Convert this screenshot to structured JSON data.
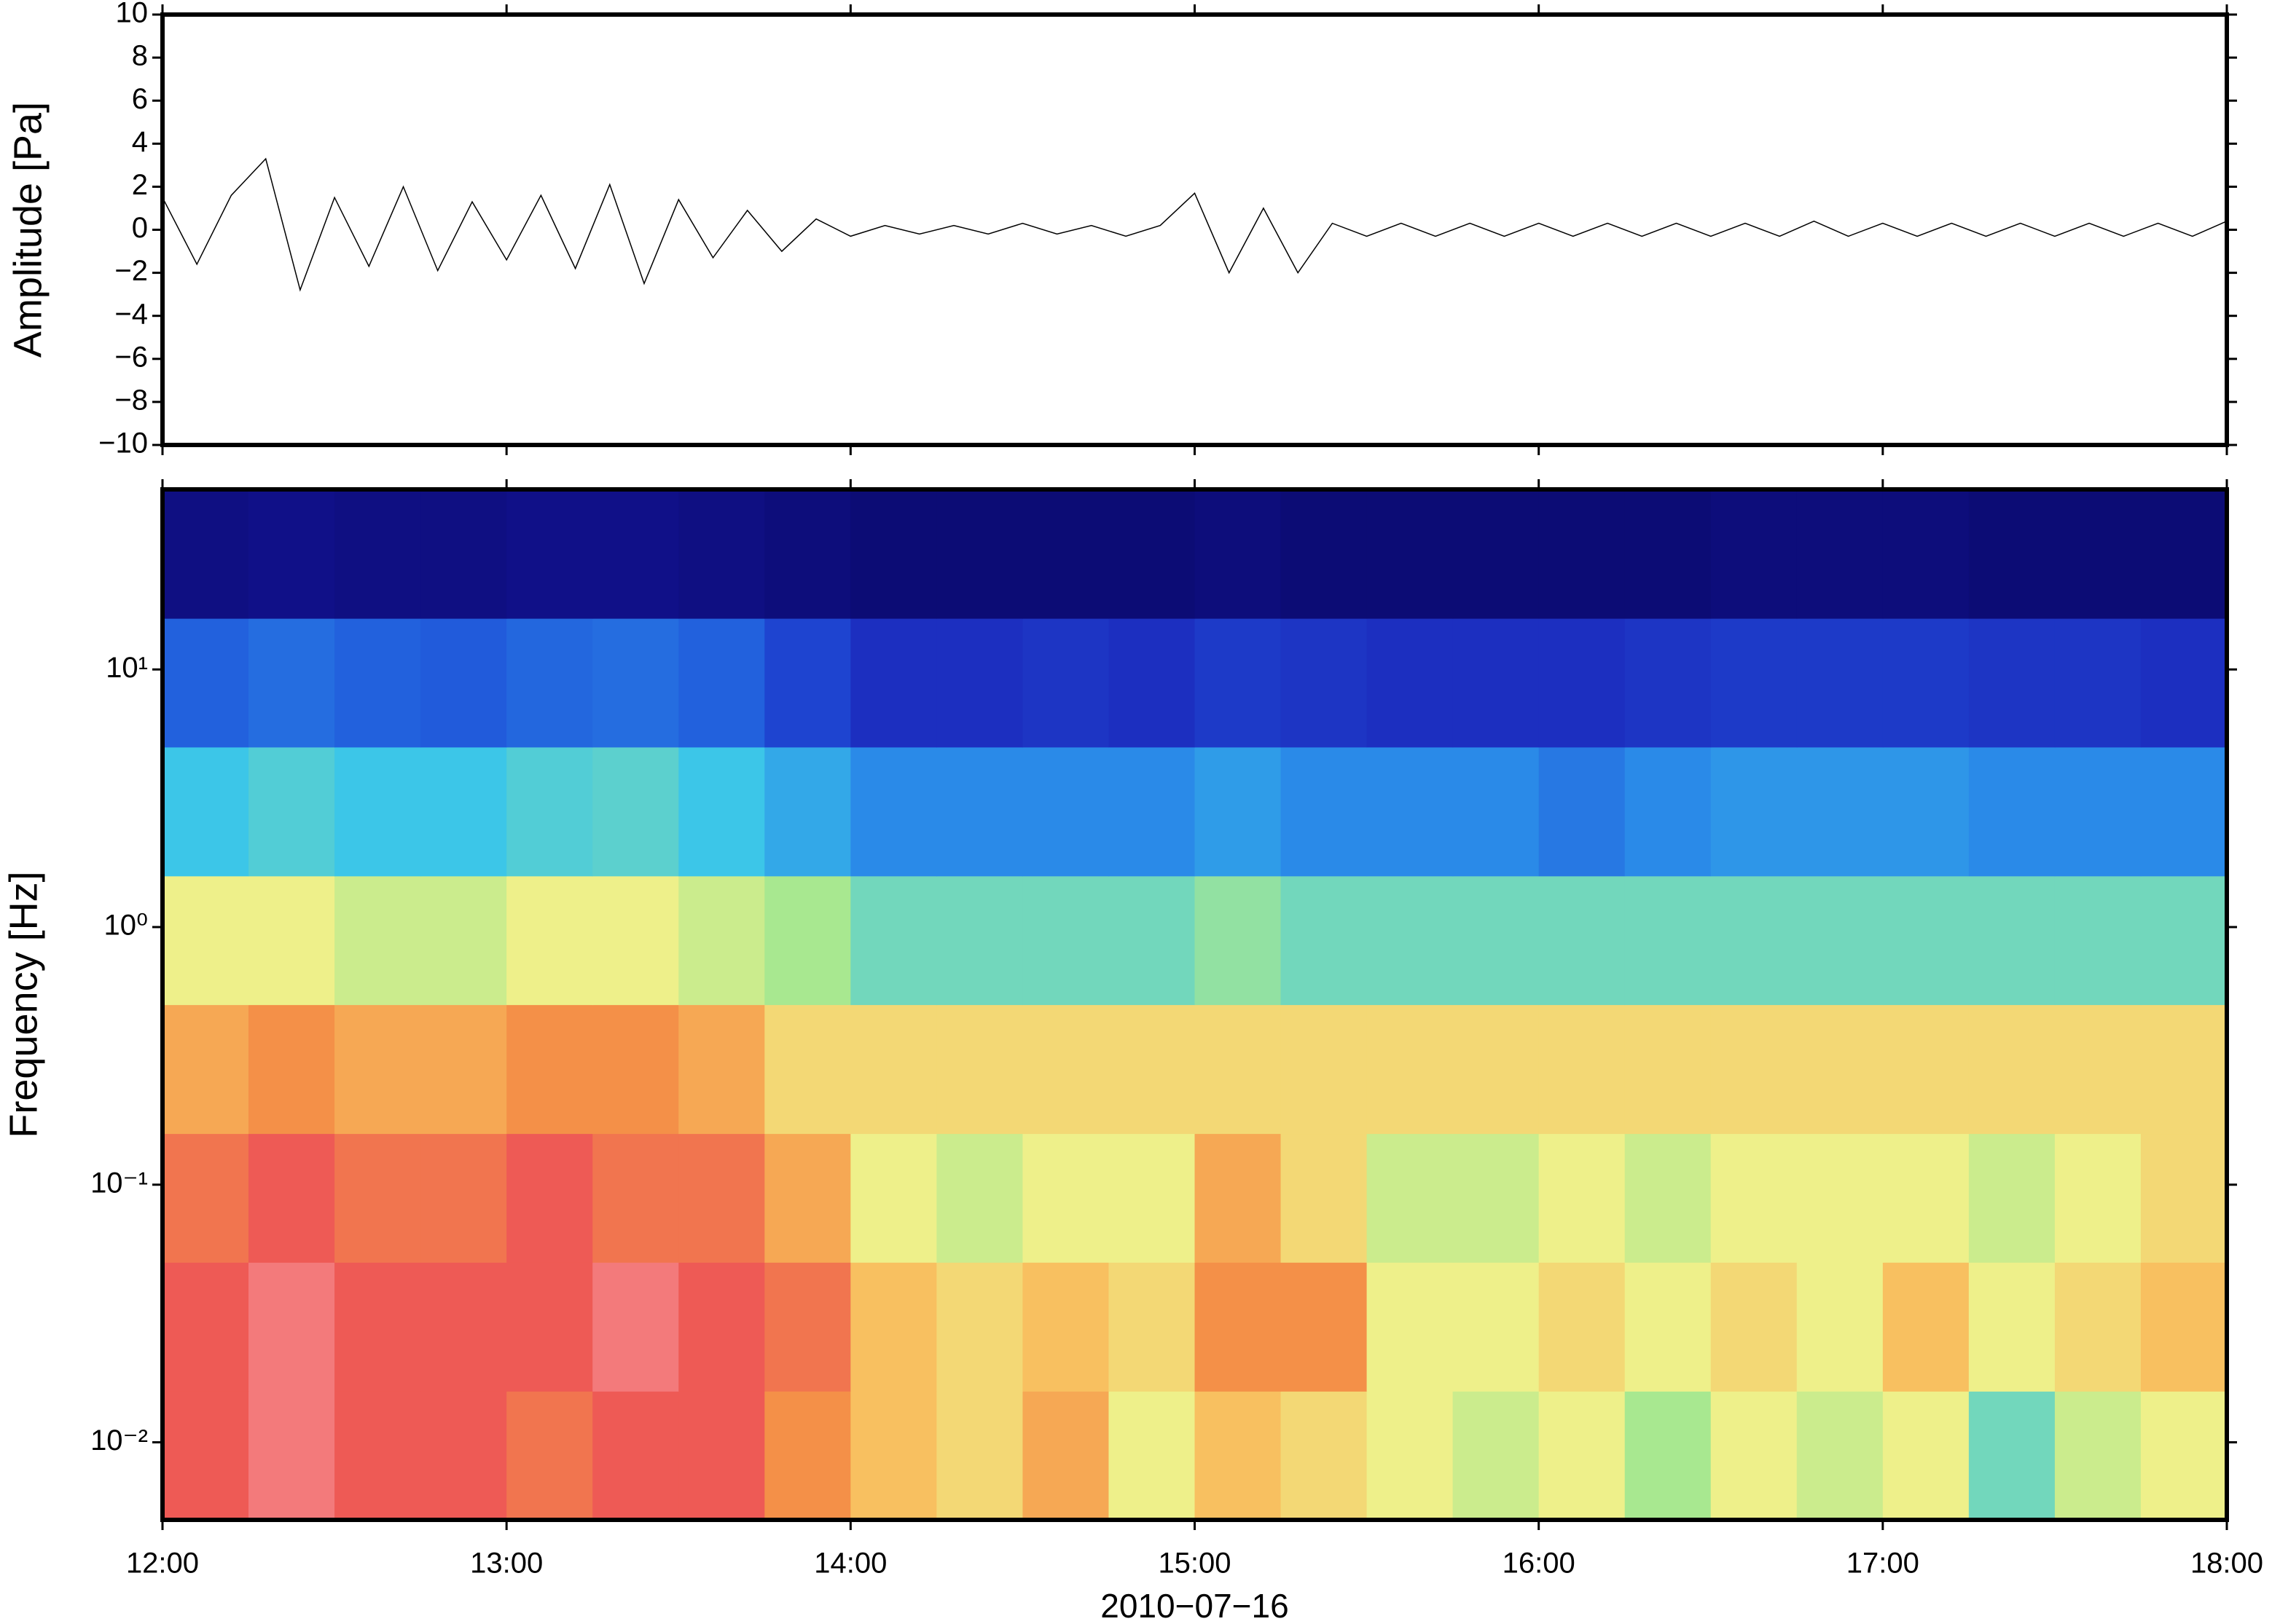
{
  "chart_data": [
    {
      "type": "line",
      "ylabel": "Amplitude [Pa]",
      "color": "#000000",
      "xlim": [
        12,
        18
      ],
      "ylim": [
        -10,
        10
      ],
      "yticks": [
        {
          "value": -10,
          "label": "−10"
        },
        {
          "value": -8,
          "label": "−8"
        },
        {
          "value": -6,
          "label": "−6"
        },
        {
          "value": -4,
          "label": "−4"
        },
        {
          "value": -2,
          "label": "−2"
        },
        0,
        2,
        4,
        6,
        8,
        10
      ],
      "x": [
        12.0,
        12.1,
        12.2,
        12.3,
        12.4,
        12.5,
        12.6,
        12.7,
        12.8,
        12.9,
        13.0,
        13.1,
        13.2,
        13.3,
        13.4,
        13.5,
        13.6,
        13.7,
        13.8,
        13.9,
        14.0,
        14.1,
        14.2,
        14.3,
        14.4,
        14.5,
        14.6,
        14.7,
        14.8,
        14.9,
        15.0,
        15.1,
        15.2,
        15.3,
        15.4,
        15.5,
        15.6,
        15.7,
        15.8,
        15.9,
        16.0,
        16.1,
        16.2,
        16.3,
        16.4,
        16.5,
        16.6,
        16.7,
        16.8,
        16.9,
        17.0,
        17.1,
        17.2,
        17.3,
        17.4,
        17.5,
        17.6,
        17.7,
        17.8,
        17.9,
        18.0
      ],
      "values": [
        1.5,
        -1.6,
        1.6,
        3.3,
        -2.8,
        1.5,
        -1.7,
        2.0,
        -1.9,
        1.3,
        -1.4,
        1.6,
        -1.8,
        2.1,
        -2.5,
        1.4,
        -1.3,
        0.9,
        -1.0,
        0.5,
        -0.3,
        0.2,
        -0.2,
        0.2,
        -0.2,
        0.3,
        -0.2,
        0.2,
        -0.3,
        0.2,
        1.7,
        -2.0,
        1.0,
        -2.0,
        0.3,
        -0.3,
        0.3,
        -0.3,
        0.3,
        -0.3,
        0.3,
        -0.3,
        0.3,
        -0.3,
        0.3,
        -0.3,
        0.3,
        -0.3,
        0.4,
        -0.3,
        0.3,
        -0.3,
        0.3,
        -0.3,
        0.3,
        -0.3,
        0.3,
        -0.3,
        0.3,
        -0.3,
        0.4
      ]
    },
    {
      "type": "heatmap",
      "ylabel": "Frequency [Hz]",
      "xlabel": "2010−07−16",
      "log_y": true,
      "xlim": [
        12,
        18
      ],
      "ylim": [
        0.005,
        50
      ],
      "xticks": [
        {
          "value": 12,
          "label": "12:00"
        },
        {
          "value": 13,
          "label": "13:00"
        },
        {
          "value": 14,
          "label": "14:00"
        },
        {
          "value": 15,
          "label": "15:00"
        },
        {
          "value": 16,
          "label": "16:00"
        },
        {
          "value": 17,
          "label": "17:00"
        },
        {
          "value": 18,
          "label": "18:00"
        }
      ],
      "yticks": [
        {
          "value": 0.01,
          "label": "10⁻²"
        },
        {
          "value": 0.1,
          "label": "10⁻¹"
        },
        {
          "value": 1,
          "label": "10⁰"
        },
        {
          "value": 10,
          "label": "10¹"
        }
      ],
      "x_edges": [
        12,
        12.25,
        12.5,
        12.75,
        13,
        13.25,
        13.5,
        13.75,
        14,
        14.25,
        14.5,
        14.75,
        15,
        15.25,
        15.5,
        15.75,
        16,
        16.25,
        16.5,
        16.75,
        17,
        17.25,
        17.5,
        17.75,
        18
      ],
      "y_edges": [
        0.005,
        0.0158,
        0.05,
        0.158,
        0.5,
        1.58,
        5,
        15.8,
        50
      ],
      "zlim": [
        0,
        10
      ],
      "colormap": [
        "#0a0a6e",
        "#1a1ab0",
        "#1f4fd8",
        "#2a8ae8",
        "#3cc6e8",
        "#a8e890",
        "#eef08a",
        "#f8c060",
        "#f49048",
        "#ee5a55",
        "#f79aa0"
      ],
      "z": [
        [
          9,
          9.5,
          9,
          9,
          8.5,
          9,
          9,
          8,
          7,
          6.5,
          7.5,
          6,
          7,
          6.5,
          6,
          5.5,
          6,
          5,
          6,
          5.5,
          6,
          4.5,
          5.5,
          6
        ],
        [
          9,
          9.5,
          9,
          9,
          9,
          9.5,
          9,
          8.5,
          7,
          6.5,
          7,
          6.5,
          8,
          8,
          6,
          6,
          6.5,
          6,
          6.5,
          6,
          7,
          6,
          6.5,
          7
        ],
        [
          8.5,
          9,
          8.5,
          8.5,
          9,
          8.5,
          8.5,
          7.5,
          6,
          5.5,
          6,
          6,
          7.5,
          6.5,
          5.5,
          5.5,
          6,
          5.5,
          6,
          6,
          6,
          5.5,
          6,
          6.5
        ],
        [
          7.5,
          8,
          7.5,
          7.5,
          8,
          8,
          7.5,
          6.5,
          6.5,
          6.5,
          6.5,
          6.5,
          6.5,
          6.5,
          6.5,
          6.5,
          6.5,
          6.5,
          6.5,
          6.5,
          6.5,
          6.5,
          6.5,
          6.5
        ],
        [
          6,
          6,
          5.5,
          5.5,
          6,
          6,
          5.5,
          5,
          4.5,
          4.5,
          4.5,
          4.5,
          4.8,
          4.5,
          4.5,
          4.5,
          4.5,
          4.5,
          4.5,
          4.5,
          4.5,
          4.5,
          4.5,
          4.5
        ],
        [
          4,
          4.2,
          4,
          4,
          4.2,
          4.3,
          4,
          3.5,
          3,
          3,
          3,
          3,
          3.3,
          3,
          3,
          3,
          2.7,
          3,
          3.2,
          3.2,
          3.2,
          3,
          3,
          3
        ],
        [
          2.3,
          2.5,
          2.3,
          2.2,
          2.4,
          2.5,
          2.3,
          1.8,
          1.4,
          1.4,
          1.5,
          1.4,
          1.6,
          1.5,
          1.4,
          1.4,
          1.4,
          1.5,
          1.6,
          1.6,
          1.6,
          1.5,
          1.5,
          1.4
        ],
        [
          0.3,
          0.4,
          0.3,
          0.3,
          0.4,
          0.4,
          0.3,
          0.2,
          0.1,
          0.1,
          0.1,
          0.1,
          0.2,
          0.1,
          0.1,
          0.1,
          0.1,
          0.1,
          0.2,
          0.2,
          0.2,
          0.1,
          0.1,
          0.1
        ]
      ]
    }
  ]
}
